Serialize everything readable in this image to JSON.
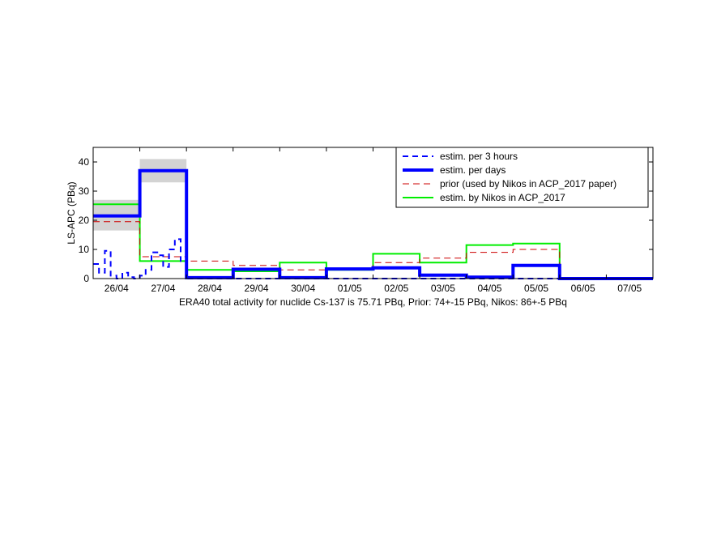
{
  "chart_data": {
    "type": "line",
    "xlabel": "ERA40 total activity for nuclide Cs-137 is 75.71 PBq, Prior: 74+-15 PBq, Nikos: 86+-5 PBq",
    "ylabel": "LS-APC (PBq)",
    "xlim": [
      0,
      12
    ],
    "ylim": [
      0,
      45
    ],
    "yticks": [
      0,
      10,
      20,
      30,
      40
    ],
    "xtick_labels": [
      "26/04",
      "27/04",
      "28/04",
      "29/04",
      "30/04",
      "01/05",
      "02/05",
      "03/05",
      "04/05",
      "05/05",
      "06/05",
      "07/05"
    ],
    "grid": false,
    "legend_position": "top-right",
    "series": [
      {
        "name": "estim. per 3 hours",
        "color": "#0000ff",
        "style": "dashed",
        "x": [
          0,
          0.125,
          0.125,
          0.25,
          0.25,
          0.375,
          0.375,
          0.5,
          0.5,
          0.625,
          0.625,
          0.75,
          0.75,
          0.875,
          0.875,
          1,
          1,
          1.125,
          1.125,
          1.25,
          1.25,
          1.375,
          1.375,
          1.5,
          1.5,
          1.625,
          1.625,
          1.75,
          1.75,
          1.875,
          1.875,
          2,
          2,
          12
        ],
        "y": [
          5,
          5,
          2,
          2,
          9.5,
          9.5,
          1,
          1,
          0,
          0,
          2,
          2,
          0.5,
          0.5,
          0,
          0,
          1,
          1,
          3,
          3,
          9,
          9,
          8,
          8,
          4,
          4,
          10,
          10,
          13.5,
          13.5,
          6,
          6,
          0,
          0
        ]
      },
      {
        "name": "estim. per days",
        "color": "#0000ff",
        "style": "solid",
        "x": [
          0,
          1,
          1,
          2,
          2,
          3,
          3,
          4,
          4,
          5,
          5,
          6,
          6,
          7,
          7,
          8,
          8,
          9,
          9,
          10,
          10,
          11,
          11,
          12
        ],
        "y": [
          21.5,
          21.5,
          37,
          37,
          0.3,
          0.3,
          3.2,
          3.2,
          0.3,
          0.3,
          3.3,
          3.3,
          3.7,
          3.7,
          1.2,
          1.2,
          0.5,
          0.5,
          4.5,
          4.5,
          0,
          0,
          0,
          0
        ]
      },
      {
        "name": "prior (used by Nikos in ACP_2017 paper)",
        "color": "#cc0000",
        "style": "dashed",
        "x": [
          0,
          1,
          1,
          2,
          2,
          3,
          3,
          4,
          4,
          5,
          5,
          6,
          6,
          7,
          7,
          8,
          8,
          9,
          9,
          10,
          10,
          11,
          11,
          12
        ],
        "y": [
          19.5,
          19.5,
          7.5,
          7.5,
          6,
          6,
          4.5,
          4.5,
          3,
          3,
          3.5,
          3.5,
          5.5,
          5.5,
          7,
          7,
          9,
          9,
          10,
          10,
          0,
          0,
          0,
          0
        ]
      },
      {
        "name": "estim. by Nikos in ACP_2017",
        "color": "#00ee00",
        "style": "solid",
        "x": [
          0,
          1,
          1,
          2,
          2,
          3,
          3,
          4,
          4,
          5,
          5,
          6,
          6,
          7,
          7,
          8,
          8,
          9,
          9,
          10,
          10,
          11,
          11,
          12
        ],
        "y": [
          25.5,
          25.5,
          6,
          6,
          3,
          3,
          2.5,
          2.5,
          5.5,
          5.5,
          3,
          3,
          8.5,
          8.5,
          5.5,
          5.5,
          11.5,
          11.5,
          12,
          12,
          0,
          0,
          0,
          0
        ]
      }
    ],
    "uncertainty_bands": [
      {
        "x": [
          0,
          1
        ],
        "y_low": 16.5,
        "y_high": 27,
        "color": "#d3d3d3"
      },
      {
        "x": [
          1,
          2
        ],
        "y_low": 33,
        "y_high": 41,
        "color": "#d3d3d3"
      }
    ]
  }
}
